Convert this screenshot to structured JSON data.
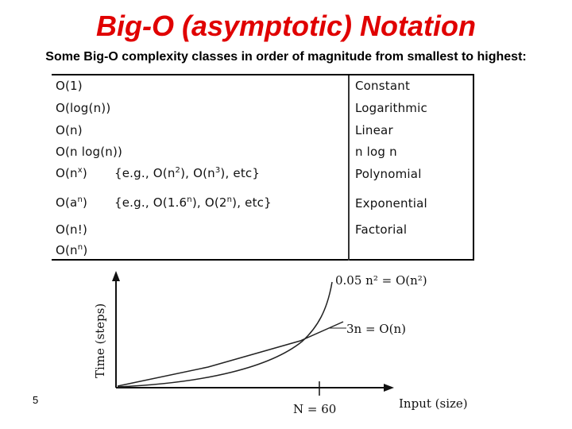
{
  "title": "Big-O (asymptotic) Notation",
  "subtitle": "Some Big-O complexity classes in order of magnitude from smallest to highest:",
  "table": {
    "rows": [
      {
        "notation": "O(1)",
        "example": "",
        "name": "Constant"
      },
      {
        "notation": "O(log(n))",
        "example": "",
        "name": "Logarithmic"
      },
      {
        "notation": "O(n)",
        "example": "",
        "name": "Linear"
      },
      {
        "notation": "O(n log(n))",
        "example": "",
        "name": "n log n"
      },
      {
        "notation": "O(n^x)",
        "example": "{e.g., O(n^2), O(n^3), etc}",
        "name": "Polynomial"
      },
      {
        "notation": "O(a^n)",
        "example": "{e.g., O(1.6^n), O(2^n), etc}",
        "name": "Exponential"
      },
      {
        "notation": "O(n!)",
        "example": "",
        "name": "Factorial"
      },
      {
        "notation": "O(n^n)",
        "example": "",
        "name": ""
      }
    ]
  },
  "graph": {
    "y_axis_label": "Time (steps)",
    "x_axis_label": "Input (size)",
    "curve_quadratic_label": "0.05 n² = O(n²)",
    "curve_linear_label": "3n = O(n)",
    "crossover_label": "N = 60"
  },
  "page_number": "5"
}
